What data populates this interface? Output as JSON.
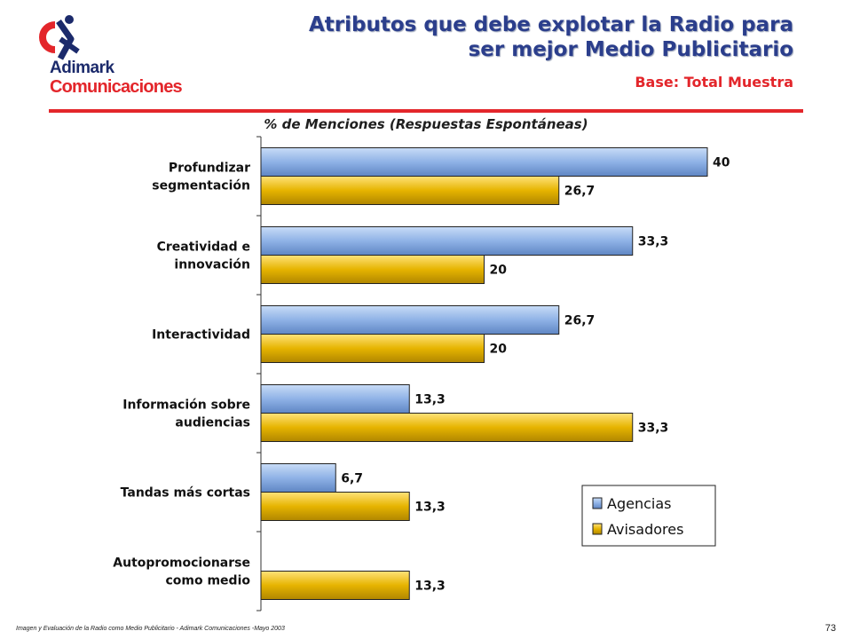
{
  "logo": {
    "line1": "Adimark",
    "line2": "Comunicaciones",
    "primary_color": "#1b2a6b",
    "accent_color": "#e3262b"
  },
  "header": {
    "title_line1": "Atributos que debe explotar la Radio para",
    "title_line2": "ser mejor Medio Publicitario",
    "subtitle": "Base: Total Muestra"
  },
  "chart_data": {
    "type": "bar",
    "orientation": "horizontal",
    "title": "%  de Menciones  (Respuestas Espontáneas)",
    "categories": [
      [
        "Profundizar",
        "segmentación"
      ],
      [
        "Creatividad e",
        "innovación"
      ],
      [
        "Interactividad"
      ],
      [
        "Información sobre",
        "audiencias"
      ],
      [
        "Tandas más cortas"
      ],
      [
        "Autopromocionarse",
        "como medio"
      ]
    ],
    "series": [
      {
        "name": "Agencias",
        "color": "#8fb2e6",
        "values": [
          40,
          33.3,
          26.7,
          13.3,
          6.7,
          null
        ]
      },
      {
        "name": "Avisadores",
        "color": "#e6b400",
        "values": [
          26.7,
          20,
          20,
          33.3,
          13.3,
          13.3
        ]
      }
    ],
    "value_labels": [
      [
        "40",
        "33,3",
        "26,7",
        "13,3",
        "6,7",
        ""
      ],
      [
        "26,7",
        "20",
        "20",
        "33,3",
        "13,3",
        "13,3"
      ]
    ],
    "xlim": [
      0,
      40
    ],
    "legend_position": "bottom-right",
    "grid": false
  },
  "footer": {
    "note": "Imagen y Evaluación de la Radio como Medio Publicitario - Adimark Comunicaciones -Mayo 2003",
    "page": "73"
  }
}
